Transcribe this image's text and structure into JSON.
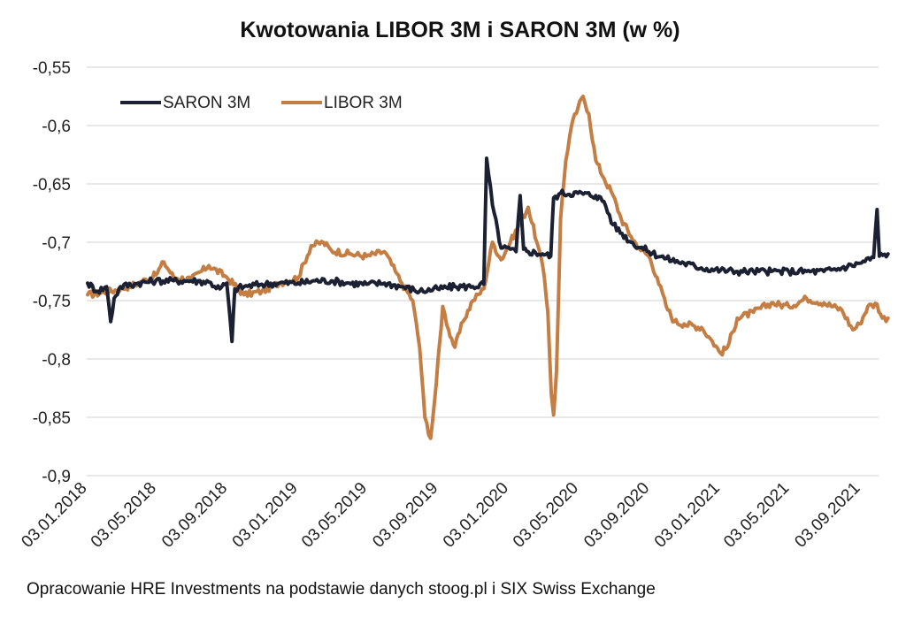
{
  "chart_data": {
    "type": "line",
    "title": "Kwotowania LIBOR 3M i SARON 3M (w %)",
    "xlabel": "",
    "ylabel": "",
    "ylim": [
      -0.9,
      -0.55
    ],
    "y_ticks": [
      "-0,55",
      "-0,6",
      "-0,65",
      "-0,7",
      "-0,75",
      "-0,8",
      "-0,85",
      "-0,9"
    ],
    "y_tick_values": [
      -0.55,
      -0.6,
      -0.65,
      -0.7,
      -0.75,
      -0.8,
      -0.85,
      -0.9
    ],
    "x_ticks": [
      "03.01.2018",
      "03.05.2018",
      "03.09.2018",
      "03.01.2019",
      "03.05.2019",
      "03.09.2019",
      "03.01.2020",
      "03.05.2020",
      "03.09.2020",
      "03.01.2021",
      "03.05.2021",
      "03.09.2021"
    ],
    "grid": "horizontal",
    "legend_position": "top-left",
    "series": [
      {
        "name": "SARON 3M",
        "color": "#1c2033",
        "points": [
          [
            "2018-01-03",
            -0.735
          ],
          [
            "2018-01-20",
            -0.742
          ],
          [
            "2018-02-05",
            -0.738
          ],
          [
            "2018-02-12",
            -0.768
          ],
          [
            "2018-02-18",
            -0.748
          ],
          [
            "2018-03-01",
            -0.738
          ],
          [
            "2018-04-01",
            -0.735
          ],
          [
            "2018-05-01",
            -0.733
          ],
          [
            "2018-06-01",
            -0.733
          ],
          [
            "2018-07-01",
            -0.733
          ],
          [
            "2018-08-01",
            -0.734
          ],
          [
            "2018-08-20",
            -0.74
          ],
          [
            "2018-09-01",
            -0.735
          ],
          [
            "2018-09-10",
            -0.785
          ],
          [
            "2018-09-15",
            -0.74
          ],
          [
            "2018-10-01",
            -0.738
          ],
          [
            "2018-11-01",
            -0.736
          ],
          [
            "2018-12-01",
            -0.735
          ],
          [
            "2019-01-03",
            -0.735
          ],
          [
            "2019-02-01",
            -0.733
          ],
          [
            "2019-03-01",
            -0.733
          ],
          [
            "2019-04-01",
            -0.735
          ],
          [
            "2019-05-01",
            -0.736
          ],
          [
            "2019-06-01",
            -0.735
          ],
          [
            "2019-07-01",
            -0.738
          ],
          [
            "2019-08-01",
            -0.742
          ],
          [
            "2019-09-01",
            -0.74
          ],
          [
            "2019-10-01",
            -0.738
          ],
          [
            "2019-11-01",
            -0.738
          ],
          [
            "2019-11-20",
            -0.736
          ],
          [
            "2019-11-25",
            -0.628
          ],
          [
            "2019-12-05",
            -0.668
          ],
          [
            "2019-12-20",
            -0.705
          ],
          [
            "2020-01-05",
            -0.706
          ],
          [
            "2020-01-15",
            -0.708
          ],
          [
            "2020-01-22",
            -0.66
          ],
          [
            "2020-01-28",
            -0.706
          ],
          [
            "2020-02-05",
            -0.708
          ],
          [
            "2020-03-01",
            -0.71
          ],
          [
            "2020-03-15",
            -0.712
          ],
          [
            "2020-03-20",
            -0.662
          ],
          [
            "2020-04-01",
            -0.658
          ],
          [
            "2020-05-01",
            -0.658
          ],
          [
            "2020-06-01",
            -0.66
          ],
          [
            "2020-06-15",
            -0.665
          ],
          [
            "2020-07-01",
            -0.685
          ],
          [
            "2020-08-01",
            -0.7
          ],
          [
            "2020-09-01",
            -0.708
          ],
          [
            "2020-10-01",
            -0.714
          ],
          [
            "2020-11-01",
            -0.718
          ],
          [
            "2020-12-01",
            -0.722
          ],
          [
            "2021-01-03",
            -0.724
          ],
          [
            "2021-02-01",
            -0.725
          ],
          [
            "2021-03-01",
            -0.725
          ],
          [
            "2021-04-01",
            -0.725
          ],
          [
            "2021-05-01",
            -0.725
          ],
          [
            "2021-06-01",
            -0.725
          ],
          [
            "2021-07-01",
            -0.725
          ],
          [
            "2021-08-01",
            -0.722
          ],
          [
            "2021-09-01",
            -0.718
          ],
          [
            "2021-09-25",
            -0.713
          ],
          [
            "2021-10-01",
            -0.672
          ],
          [
            "2021-10-05",
            -0.712
          ],
          [
            "2021-10-20",
            -0.71
          ]
        ]
      },
      {
        "name": "LIBOR 3M",
        "color": "#c47e44",
        "points": [
          [
            "2018-01-03",
            -0.745
          ],
          [
            "2018-02-01",
            -0.743
          ],
          [
            "2018-03-01",
            -0.74
          ],
          [
            "2018-04-01",
            -0.735
          ],
          [
            "2018-05-01",
            -0.728
          ],
          [
            "2018-05-15",
            -0.717
          ],
          [
            "2018-06-01",
            -0.73
          ],
          [
            "2018-07-01",
            -0.732
          ],
          [
            "2018-08-01",
            -0.72
          ],
          [
            "2018-09-01",
            -0.73
          ],
          [
            "2018-10-01",
            -0.745
          ],
          [
            "2018-11-01",
            -0.742
          ],
          [
            "2018-12-01",
            -0.735
          ],
          [
            "2019-01-03",
            -0.73
          ],
          [
            "2019-01-25",
            -0.703
          ],
          [
            "2019-02-15",
            -0.7
          ],
          [
            "2019-03-01",
            -0.707
          ],
          [
            "2019-04-01",
            -0.71
          ],
          [
            "2019-05-01",
            -0.712
          ],
          [
            "2019-06-01",
            -0.708
          ],
          [
            "2019-06-20",
            -0.725
          ],
          [
            "2019-07-01",
            -0.735
          ],
          [
            "2019-07-20",
            -0.75
          ],
          [
            "2019-08-01",
            -0.79
          ],
          [
            "2019-08-10",
            -0.85
          ],
          [
            "2019-08-20",
            -0.868
          ],
          [
            "2019-08-30",
            -0.82
          ],
          [
            "2019-09-10",
            -0.755
          ],
          [
            "2019-09-20",
            -0.775
          ],
          [
            "2019-10-01",
            -0.79
          ],
          [
            "2019-10-15",
            -0.768
          ],
          [
            "2019-11-01",
            -0.75
          ],
          [
            "2019-11-20",
            -0.74
          ],
          [
            "2019-12-05",
            -0.7
          ],
          [
            "2019-12-20",
            -0.715
          ],
          [
            "2020-01-05",
            -0.7
          ],
          [
            "2020-01-20",
            -0.685
          ],
          [
            "2020-02-05",
            -0.67
          ],
          [
            "2020-02-20",
            -0.7
          ],
          [
            "2020-03-01",
            -0.72
          ],
          [
            "2020-03-10",
            -0.76
          ],
          [
            "2020-03-16",
            -0.83
          ],
          [
            "2020-03-20",
            -0.848
          ],
          [
            "2020-03-25",
            -0.81
          ],
          [
            "2020-04-01",
            -0.68
          ],
          [
            "2020-04-10",
            -0.63
          ],
          [
            "2020-04-20",
            -0.6
          ],
          [
            "2020-05-01",
            -0.585
          ],
          [
            "2020-05-10",
            -0.575
          ],
          [
            "2020-05-20",
            -0.59
          ],
          [
            "2020-06-01",
            -0.63
          ],
          [
            "2020-06-15",
            -0.645
          ],
          [
            "2020-07-01",
            -0.66
          ],
          [
            "2020-07-15",
            -0.68
          ],
          [
            "2020-08-01",
            -0.695
          ],
          [
            "2020-08-15",
            -0.705
          ],
          [
            "2020-09-01",
            -0.712
          ],
          [
            "2020-09-15",
            -0.73
          ],
          [
            "2020-10-01",
            -0.755
          ],
          [
            "2020-10-15",
            -0.768
          ],
          [
            "2020-11-01",
            -0.77
          ],
          [
            "2020-12-01",
            -0.773
          ],
          [
            "2020-12-20",
            -0.785
          ],
          [
            "2021-01-03",
            -0.795
          ],
          [
            "2021-01-15",
            -0.79
          ],
          [
            "2021-02-01",
            -0.765
          ],
          [
            "2021-03-01",
            -0.76
          ],
          [
            "2021-04-01",
            -0.752
          ],
          [
            "2021-05-01",
            -0.755
          ],
          [
            "2021-06-01",
            -0.748
          ],
          [
            "2021-07-01",
            -0.752
          ],
          [
            "2021-08-01",
            -0.758
          ],
          [
            "2021-08-20",
            -0.775
          ],
          [
            "2021-09-01",
            -0.77
          ],
          [
            "2021-09-15",
            -0.755
          ],
          [
            "2021-10-01",
            -0.753
          ],
          [
            "2021-10-10",
            -0.765
          ],
          [
            "2021-10-20",
            -0.765
          ]
        ]
      }
    ]
  },
  "caption": "Opracowanie HRE Investments na podstawie danych stoog.pl i SIX Swiss Exchange"
}
